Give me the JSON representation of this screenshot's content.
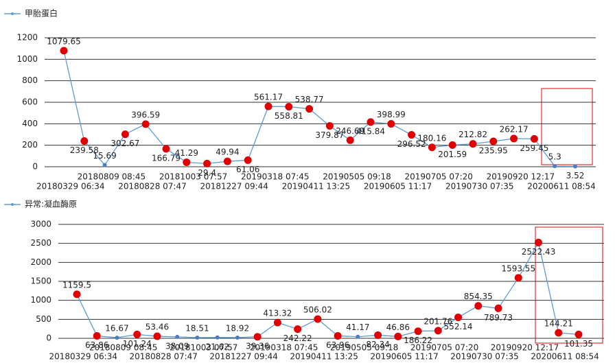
{
  "chart_data": [
    {
      "type": "line",
      "categories": [
        null,
        "20180329 06:34",
        null,
        "20180809 08:45",
        null,
        "20180828 07:47",
        null,
        "20181003 07:57",
        null,
        "20181227 09:44",
        null,
        "20190318 07:45",
        null,
        "20190411 13:25",
        null,
        "20190505 09:18",
        null,
        "20190605 11:17",
        null,
        "20190705 07:20",
        null,
        "20190730 07:35",
        null,
        "20190920 12:17",
        null,
        "20200611 08:54"
      ],
      "series": [
        {
          "name": "甲胎蛋白",
          "color": "#5b9bd5",
          "values": [
            1079.65,
            239.58,
            15.69,
            302.67,
            396.59,
            166.79,
            41.29,
            29.4,
            49.94,
            61.06,
            561.17,
            558.81,
            538.77,
            379.87,
            246.69,
            415.84,
            398.99,
            296.52,
            180.16,
            201.59,
            212.82,
            235.95,
            262.17,
            259.45,
            5.3,
            3.52
          ],
          "point_colors": [
            "#e00000",
            "#e00000",
            "#4a7ec0",
            "#e00000",
            "#e00000",
            "#e00000",
            "#e00000",
            "#e00000",
            "#e00000",
            "#e00000",
            "#e00000",
            "#e00000",
            "#e00000",
            "#e00000",
            "#e00000",
            "#e00000",
            "#e00000",
            "#e00000",
            "#e00000",
            "#e00000",
            "#e00000",
            "#e00000",
            "#e00000",
            "#e00000",
            "#4a7ec0",
            "#4a7ec0"
          ]
        }
      ],
      "ylim": [
        0,
        1200
      ],
      "yticks": [
        0,
        200,
        400,
        600,
        800,
        1000,
        1200
      ],
      "grid": true
    },
    {
      "type": "line",
      "categories": [
        null,
        "20180329 06:34",
        null,
        "20180809 08:45",
        null,
        "20180828 07:47",
        null,
        "20181003 07:57",
        null,
        "20181227 09:44",
        null,
        "20190318 07:45",
        null,
        "20190411 13:25",
        null,
        "20190505 09:18",
        null,
        "20190605 11:17",
        null,
        "20190705 07:20",
        null,
        "20190730 07:35",
        null,
        "20190920 12:17",
        null,
        "20200611 08:54"
      ],
      "series": [
        {
          "name": "异常:凝血酶原",
          "color": "#5b9bd5",
          "values": [
            1159.5,
            63.86,
            16.67,
            101.24,
            53.46,
            38.09,
            18.51,
            21.62,
            18.92,
            39.36,
            413.32,
            242.22,
            506.02,
            63.96,
            41.17,
            82.34,
            46.86,
            186.22,
            201.76,
            552.14,
            854.35,
            789.73,
            1593.55,
            2522.43,
            144.21,
            101.35
          ],
          "point_colors": [
            "#e00000",
            "#e00000",
            "#4a7ec0",
            "#e00000",
            "#e00000",
            "#4a7ec0",
            "#4a7ec0",
            "#4a7ec0",
            "#4a7ec0",
            "#e00000",
            "#e00000",
            "#e00000",
            "#e00000",
            "#e00000",
            "#4a7ec0",
            "#e00000",
            "#e00000",
            "#e00000",
            "#e00000",
            "#e00000",
            "#e00000",
            "#e00000",
            "#e00000",
            "#e00000",
            "#e00000",
            "#e00000"
          ]
        }
      ],
      "ylim": [
        0,
        3000
      ],
      "yticks": [
        0,
        500,
        1000,
        1500,
        2000,
        2500,
        3000
      ],
      "grid": true
    }
  ]
}
